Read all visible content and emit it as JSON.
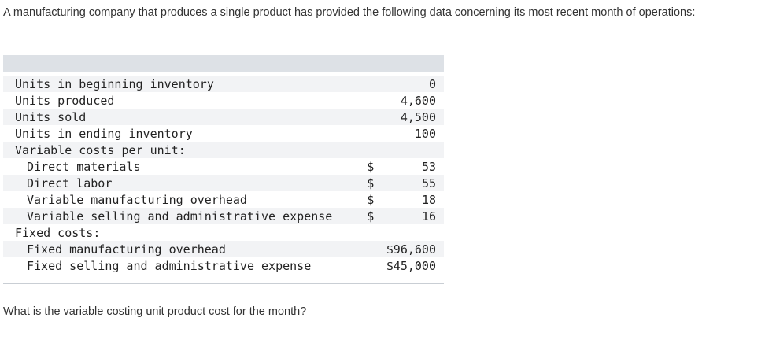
{
  "intro_text": "A manufacturing company that produces a single product has provided the following data concerning its most recent month of operations:",
  "rows": [
    {
      "label": "Units in beginning inventory",
      "currency": "",
      "value": "0"
    },
    {
      "label": "Units produced",
      "currency": "",
      "value": "4,600"
    },
    {
      "label": "Units sold",
      "currency": "",
      "value": "4,500"
    },
    {
      "label": "Units in ending inventory",
      "currency": "",
      "value": "100"
    },
    {
      "label": "Variable costs per unit:",
      "currency": "",
      "value": ""
    },
    {
      "label": "Direct materials",
      "currency": "$",
      "value": "53"
    },
    {
      "label": "Direct labor",
      "currency": "$",
      "value": "55"
    },
    {
      "label": "Variable manufacturing overhead",
      "currency": "$",
      "value": "18"
    },
    {
      "label": "Variable selling and administrative expense",
      "currency": "$",
      "value": "16"
    },
    {
      "label": "Fixed costs:",
      "currency": "",
      "value": ""
    },
    {
      "label": "Fixed manufacturing overhead",
      "currency": "",
      "value": "$96,600"
    },
    {
      "label": "Fixed selling and administrative expense",
      "currency": "",
      "value": "$45,000"
    }
  ],
  "question_text": "What is the variable costing unit product cost for the month?"
}
